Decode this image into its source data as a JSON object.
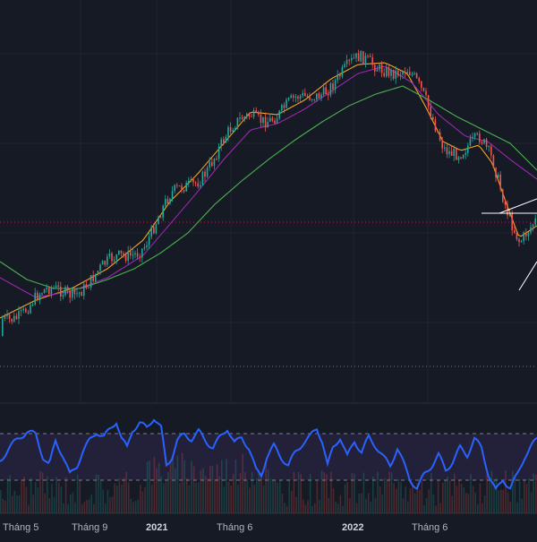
{
  "chart_data": [
    {
      "type": "candlestick",
      "series": [
        {
          "name": "",
          "style": "candles",
          "up_color": "#26a69a",
          "down_color": "#ef5350"
        },
        {
          "name": "",
          "style": "line",
          "color": "#f5a623",
          "points": [
            [
              0,
              355
            ],
            [
              40,
              335
            ],
            [
              80,
              322
            ],
            [
              120,
              300
            ],
            [
              160,
              268
            ],
            [
              190,
              225
            ],
            [
              220,
              195
            ],
            [
              250,
              160
            ],
            [
              280,
              125
            ],
            [
              310,
              128
            ],
            [
              340,
              112
            ],
            [
              370,
              88
            ],
            [
              400,
              72
            ],
            [
              430,
              70
            ],
            [
              455,
              82
            ],
            [
              475,
              118
            ],
            [
              495,
              158
            ],
            [
              515,
              168
            ],
            [
              535,
              162
            ],
            [
              550,
              182
            ],
            [
              565,
              225
            ],
            [
              580,
              265
            ],
            [
              600,
              252
            ]
          ]
        },
        {
          "name": "",
          "style": "line",
          "color": "#9c27b0",
          "points": [
            [
              0,
              310
            ],
            [
              40,
              332
            ],
            [
              80,
              325
            ],
            [
              120,
              310
            ],
            [
              160,
              285
            ],
            [
              190,
              250
            ],
            [
              220,
              215
            ],
            [
              250,
              178
            ],
            [
              280,
              145
            ],
            [
              310,
              138
            ],
            [
              340,
              122
            ],
            [
              370,
              102
            ],
            [
              400,
              82
            ],
            [
              430,
              74
            ],
            [
              460,
              92
            ],
            [
              490,
              128
            ],
            [
              520,
              152
            ],
            [
              545,
              158
            ],
            [
              570,
              178
            ],
            [
              600,
              200
            ]
          ]
        },
        {
          "name": "",
          "style": "line",
          "color": "#4caf50",
          "points": [
            [
              0,
              292
            ],
            [
              30,
              312
            ],
            [
              60,
              322
            ],
            [
              90,
              322
            ],
            [
              120,
              312
            ],
            [
              150,
              300
            ],
            [
              180,
              282
            ],
            [
              210,
              260
            ],
            [
              240,
              228
            ],
            [
              270,
              202
            ],
            [
              300,
              178
            ],
            [
              330,
              156
            ],
            [
              360,
              136
            ],
            [
              390,
              118
            ],
            [
              420,
              105
            ],
            [
              450,
              96
            ],
            [
              480,
              112
            ],
            [
              510,
              130
            ],
            [
              540,
              145
            ],
            [
              570,
              160
            ],
            [
              600,
              190
            ]
          ]
        }
      ],
      "price_range": [],
      "reference_lines": [
        {
          "name": "",
          "style": "dotted",
          "color": "#c2185b"
        },
        {
          "name": "",
          "style": "dotted",
          "color": "#787b86"
        }
      ],
      "drawings": [
        {
          "name": "",
          "color": "#ffffff"
        },
        {
          "name": "",
          "color": "#ffffff"
        },
        {
          "name": "",
          "color": "#ffffff"
        }
      ]
    },
    {
      "type": "line",
      "series": [
        {
          "name": "",
          "color": "#2962ff",
          "points": [
            [
              0,
              515
            ],
            [
              10,
              500
            ],
            [
              20,
              490
            ],
            [
              30,
              482
            ],
            [
              40,
              485
            ],
            [
              48,
              510
            ],
            [
              55,
              520
            ],
            [
              62,
              492
            ],
            [
              70,
              508
            ],
            [
              78,
              530
            ],
            [
              86,
              520
            ],
            [
              92,
              505
            ],
            [
              100,
              492
            ],
            [
              108,
              482
            ],
            [
              116,
              488
            ],
            [
              124,
              478
            ],
            [
              130,
              470
            ],
            [
              136,
              490
            ],
            [
              142,
              500
            ],
            [
              148,
              480
            ],
            [
              156,
              472
            ],
            [
              164,
              478
            ],
            [
              172,
              466
            ],
            [
              180,
              478
            ],
            [
              186,
              520
            ],
            [
              192,
              510
            ],
            [
              198,
              492
            ],
            [
              206,
              485
            ],
            [
              214,
              490
            ],
            [
              222,
              482
            ],
            [
              230,
              492
            ],
            [
              238,
              500
            ],
            [
              246,
              488
            ],
            [
              254,
              478
            ],
            [
              262,
              495
            ],
            [
              270,
              488
            ],
            [
              278,
              500
            ],
            [
              286,
              525
            ],
            [
              292,
              530
            ],
            [
              298,
              510
            ],
            [
              306,
              498
            ],
            [
              314,
              510
            ],
            [
              322,
              520
            ],
            [
              330,
              505
            ],
            [
              338,
              495
            ],
            [
              346,
              488
            ],
            [
              354,
              478
            ],
            [
              360,
              492
            ],
            [
              366,
              520
            ],
            [
              372,
              500
            ],
            [
              380,
              488
            ],
            [
              388,
              510
            ],
            [
              396,
              492
            ],
            [
              404,
              505
            ],
            [
              412,
              488
            ],
            [
              420,
              498
            ],
            [
              428,
              510
            ],
            [
              436,
              520
            ],
            [
              444,
              500
            ],
            [
              450,
              515
            ],
            [
              458,
              535
            ],
            [
              466,
              545
            ],
            [
              474,
              530
            ],
            [
              482,
              520
            ],
            [
              490,
              508
            ],
            [
              498,
              525
            ],
            [
              506,
              515
            ],
            [
              514,
              500
            ],
            [
              522,
              508
            ],
            [
              530,
              490
            ],
            [
              538,
              500
            ],
            [
              546,
              530
            ],
            [
              554,
              548
            ],
            [
              562,
              535
            ],
            [
              570,
              545
            ],
            [
              578,
              530
            ],
            [
              586,
              510
            ],
            [
              594,
              498
            ],
            [
              600,
              490
            ]
          ]
        }
      ],
      "bands": [
        {
          "name": "",
          "color": "#7e57c2"
        }
      ]
    }
  ],
  "time_axis": {
    "labels": [
      {
        "text": "Tháng 5",
        "year": false
      },
      {
        "text": "Tháng 9",
        "year": false
      },
      {
        "text": "2021",
        "year": true
      },
      {
        "text": "Tháng 6",
        "year": false
      },
      {
        "text": "2022",
        "year": true
      },
      {
        "text": "Tháng 6",
        "year": false
      }
    ]
  }
}
